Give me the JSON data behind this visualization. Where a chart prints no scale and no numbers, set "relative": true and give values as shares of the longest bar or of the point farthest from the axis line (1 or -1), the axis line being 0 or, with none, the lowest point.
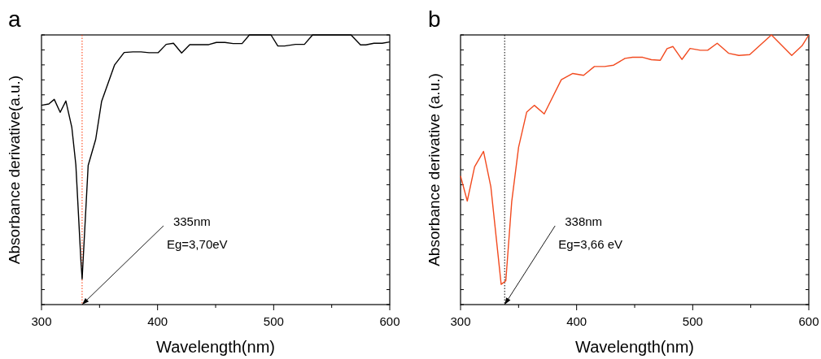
{
  "chart_data": [
    {
      "type": "line",
      "title": "a",
      "xlabel": "Wavelength(nm)",
      "ylabel": "Absorbance derivative(a.u.)",
      "relative": true,
      "xlim": [
        300,
        600
      ],
      "xticks": [
        300,
        {
          "value": 350,
          "label": null
        },
        400,
        {
          "value": 450,
          "label": null
        },
        500,
        {
          "value": 550,
          "label": null
        },
        600
      ],
      "line_style": "solid",
      "grid": false,
      "series": [
        {
          "color": "#000000",
          "x": [
            300,
            306.3,
            311.0,
            316.1,
            321.0,
            326.1,
            329.6,
            333.9,
            335,
            340.2,
            346.7,
            351.8,
            363.0,
            371.2,
            378.7,
            385.7,
            392.7,
            400.4,
            407.4,
            413.7,
            420.7,
            427.7,
            434.7,
            444.1,
            450.6,
            458.0,
            465.1,
            472.8,
            479.1,
            497.7,
            503.6,
            509.4,
            518.8,
            526.5,
            533.5,
            566.6,
            574.8,
            579.4,
            586.4,
            593.5,
            600
          ],
          "values": [
            0.739,
            0.744,
            0.761,
            0.713,
            0.755,
            0.658,
            0.518,
            0.166,
            0.095,
            0.516,
            0.613,
            0.754,
            0.889,
            0.935,
            0.937,
            0.937,
            0.934,
            0.934,
            0.965,
            0.969,
            0.933,
            0.964,
            0.964,
            0.964,
            0.972,
            0.972,
            0.968,
            0.968,
            1.0,
            1.0,
            0.959,
            0.959,
            0.965,
            0.965,
            1.0,
            1.0,
            0.963,
            0.963,
            0.969,
            0.969,
            0.974
          ]
        }
      ],
      "ref_lines": [
        {
          "axis": "x",
          "value": 335,
          "color": "#ff3300",
          "line_style": "dotted"
        }
      ],
      "annotations": [
        {
          "text": "335nm",
          "x": 335,
          "y": 0
        },
        "Eg=3,70eV"
      ]
    },
    {
      "type": "line",
      "title": "b",
      "xlabel": "Wavelength(nm)",
      "ylabel": "Absorbance derivative (a.u.)",
      "relative": true,
      "xlim": [
        300,
        600
      ],
      "xticks": [
        300,
        {
          "value": 350,
          "label": null
        },
        400,
        {
          "value": 450,
          "label": null
        },
        500,
        {
          "value": 550,
          "label": null
        },
        600
      ],
      "line_style": "solid",
      "grid": false,
      "series": [
        {
          "color": "#f24a1f",
          "x": [
            300,
            305.8,
            312.1,
            319.8,
            326.1,
            335.0,
            339.0,
            344.1,
            350.0,
            357.0,
            363.5,
            372.1,
            386.8,
            396.7,
            406.0,
            415.3,
            424.2,
            431.9,
            441.7,
            448.2,
            456.9,
            464.4,
            472.1,
            477.9,
            483.0,
            490.7,
            497.7,
            506.6,
            512.9,
            521.1,
            530.9,
            539.8,
            549.1,
            567.8,
            585.3,
            594.2,
            600
          ],
          "values": [
            0.477,
            0.384,
            0.511,
            0.568,
            0.437,
            0.075,
            0.088,
            0.382,
            0.583,
            0.714,
            0.739,
            0.707,
            0.834,
            0.857,
            0.85,
            0.883,
            0.883,
            0.888,
            0.913,
            0.917,
            0.917,
            0.908,
            0.906,
            0.949,
            0.957,
            0.909,
            0.95,
            0.943,
            0.943,
            0.969,
            0.932,
            0.924,
            0.927,
            1.0,
            0.924,
            0.96,
            1.0
          ]
        }
      ],
      "ref_lines": [
        {
          "axis": "x",
          "value": 338,
          "color": "#000000",
          "line_style": "dotted"
        }
      ],
      "annotations": [
        {
          "text": "338nm",
          "x": 338,
          "y": 0
        },
        "Eg=3,66 eV"
      ]
    }
  ]
}
